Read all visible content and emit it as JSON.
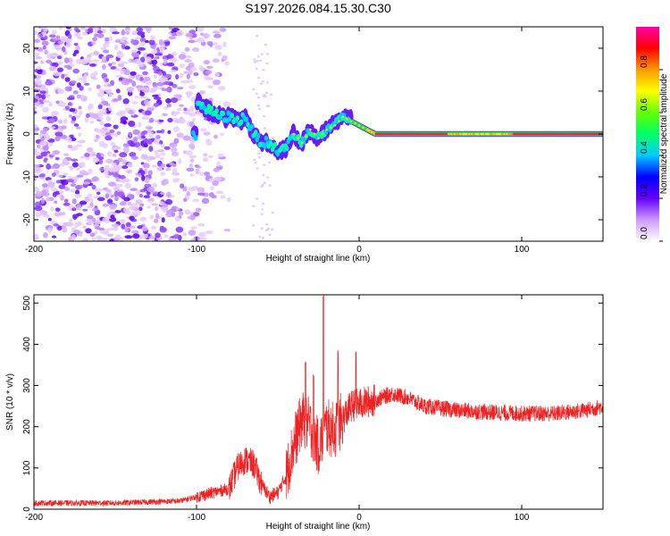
{
  "title": "S197.2026.084.15.30.C30",
  "chart_data": [
    {
      "type": "heatmap",
      "name": "spectrogram",
      "xlabel": "Height of straight line (km)",
      "ylabel": "Frequency (Hz)",
      "xlim": [
        -200,
        150
      ],
      "ylim": [
        -25,
        25
      ],
      "xticks": [
        -200,
        -100,
        0,
        100
      ],
      "xtick_labels": [
        "-200",
        "-100",
        "0",
        "100"
      ],
      "yticks": [
        -20,
        -10,
        0,
        10,
        20
      ],
      "ytick_labels": [
        "-20",
        "-10",
        "0",
        "10",
        "20"
      ],
      "ridge": [
        {
          "x": -100,
          "y": 8
        },
        {
          "x": -95,
          "y": 6
        },
        {
          "x": -90,
          "y": 5
        },
        {
          "x": -85,
          "y": 4
        },
        {
          "x": -80,
          "y": 4
        },
        {
          "x": -75,
          "y": 3
        },
        {
          "x": -70,
          "y": 4
        },
        {
          "x": -65,
          "y": 0
        },
        {
          "x": -60,
          "y": -2
        },
        {
          "x": -55,
          "y": -2
        },
        {
          "x": -50,
          "y": -4
        },
        {
          "x": -45,
          "y": -3
        },
        {
          "x": -40,
          "y": 0
        },
        {
          "x": -35,
          "y": -2
        },
        {
          "x": -30,
          "y": 1
        },
        {
          "x": -25,
          "y": -1
        },
        {
          "x": -20,
          "y": 1
        },
        {
          "x": -15,
          "y": 2
        },
        {
          "x": -10,
          "y": 4
        },
        {
          "x": -5,
          "y": 3
        },
        {
          "x": 0,
          "y": 2
        },
        {
          "x": 5,
          "y": 1
        },
        {
          "x": 10,
          "y": 0
        },
        {
          "x": 20,
          "y": 0
        },
        {
          "x": 60,
          "y": 0
        },
        {
          "x": 100,
          "y": 0
        },
        {
          "x": 150,
          "y": 0
        }
      ],
      "colorbar": {
        "label": "Normalized spectral amplitude",
        "range": [
          0.0,
          1.0
        ],
        "ticks": [
          0.0,
          0.2,
          0.4,
          0.6,
          0.8
        ],
        "tick_labels": [
          "0.0",
          "0.2",
          "0.4",
          "0.6",
          "0.8"
        ],
        "colors": [
          "#ffffff",
          "#cc99ff",
          "#6600ff",
          "#0000ff",
          "#00ccff",
          "#00ff66",
          "#66ff00",
          "#ffff00",
          "#ff9900",
          "#ff0000",
          "#ff00aa"
        ]
      }
    },
    {
      "type": "line",
      "name": "snr",
      "xlabel": "Height of straight line (km)",
      "ylabel": "SNR (10 * v/v)",
      "xlim": [
        -200,
        150
      ],
      "ylim": [
        0,
        520
      ],
      "xticks": [
        -200,
        -100,
        0,
        100
      ],
      "xtick_labels": [
        "-200",
        "-100",
        "0",
        "100"
      ],
      "yticks": [
        0,
        100,
        200,
        300,
        400,
        500
      ],
      "ytick_labels": [
        "0",
        "100",
        "200",
        "300",
        "400",
        "500"
      ],
      "color": "#ee2222",
      "envelope": [
        {
          "x": -200,
          "y": 15
        },
        {
          "x": -150,
          "y": 15
        },
        {
          "x": -110,
          "y": 20
        },
        {
          "x": -100,
          "y": 30
        },
        {
          "x": -90,
          "y": 40
        },
        {
          "x": -80,
          "y": 50
        },
        {
          "x": -75,
          "y": 100
        },
        {
          "x": -70,
          "y": 120
        },
        {
          "x": -65,
          "y": 110
        },
        {
          "x": -60,
          "y": 60
        },
        {
          "x": -55,
          "y": 30
        },
        {
          "x": -50,
          "y": 40
        },
        {
          "x": -45,
          "y": 80
        },
        {
          "x": -40,
          "y": 160
        },
        {
          "x": -35,
          "y": 220
        },
        {
          "x": -30,
          "y": 200
        },
        {
          "x": -25,
          "y": 150
        },
        {
          "x": -20,
          "y": 200
        },
        {
          "x": -15,
          "y": 190
        },
        {
          "x": -10,
          "y": 220
        },
        {
          "x": -5,
          "y": 250
        },
        {
          "x": 0,
          "y": 255
        },
        {
          "x": 10,
          "y": 265
        },
        {
          "x": 20,
          "y": 280
        },
        {
          "x": 30,
          "y": 270
        },
        {
          "x": 40,
          "y": 250
        },
        {
          "x": 60,
          "y": 240
        },
        {
          "x": 80,
          "y": 235
        },
        {
          "x": 100,
          "y": 232
        },
        {
          "x": 120,
          "y": 232
        },
        {
          "x": 140,
          "y": 240
        },
        {
          "x": 150,
          "y": 250
        }
      ],
      "spikes": [
        {
          "x": -33,
          "y": 360
        },
        {
          "x": -28,
          "y": 330
        },
        {
          "x": -22,
          "y": 520
        },
        {
          "x": -13,
          "y": 385
        },
        {
          "x": -2,
          "y": 385
        }
      ]
    }
  ]
}
